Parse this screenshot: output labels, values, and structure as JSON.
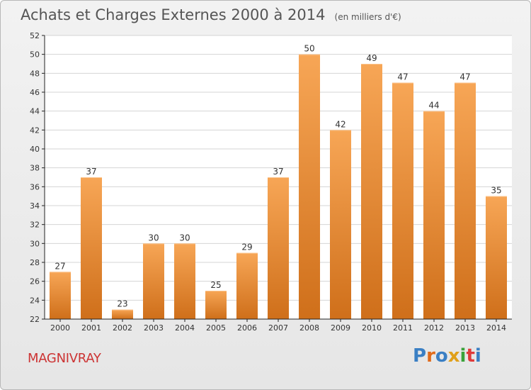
{
  "page": {
    "title": "Achats et Charges Externes 2000 à 2014",
    "subtitle": "(en milliers d'€)",
    "place": "MAGNIVRAY",
    "logo": {
      "text": "Proxiti",
      "letter_colors": [
        "#3a7fc4",
        "#e06a1a",
        "#3a7fc4",
        "#e0a01a",
        "#3aa23a",
        "#e03a3a",
        "#3a7fc4"
      ]
    }
  },
  "chart_data": {
    "type": "bar",
    "title": "Achats et Charges Externes 2000 à 2014",
    "subtitle": "(en milliers d'€)",
    "categories": [
      "2000",
      "2001",
      "2002",
      "2003",
      "2004",
      "2005",
      "2006",
      "2007",
      "2008",
      "2009",
      "2010",
      "2011",
      "2012",
      "2013",
      "2014"
    ],
    "values": [
      27,
      37,
      23,
      30,
      30,
      25,
      29,
      37,
      50,
      42,
      49,
      47,
      44,
      47,
      35
    ],
    "data_labels": [
      "27",
      "37",
      "23",
      "30",
      "30",
      "25",
      "29",
      "37",
      "50",
      "42",
      "49",
      "47",
      "44",
      "47",
      "35"
    ],
    "ylim": [
      22,
      52
    ],
    "yticks": [
      22,
      24,
      26,
      28,
      30,
      32,
      34,
      36,
      38,
      40,
      42,
      44,
      46,
      48,
      50,
      52
    ],
    "grid": true,
    "colors": {
      "bar_light": "#f7a656",
      "bar_dark": "#cf6f1a",
      "grid": "#d4d4d4",
      "axis": "#222222"
    }
  }
}
